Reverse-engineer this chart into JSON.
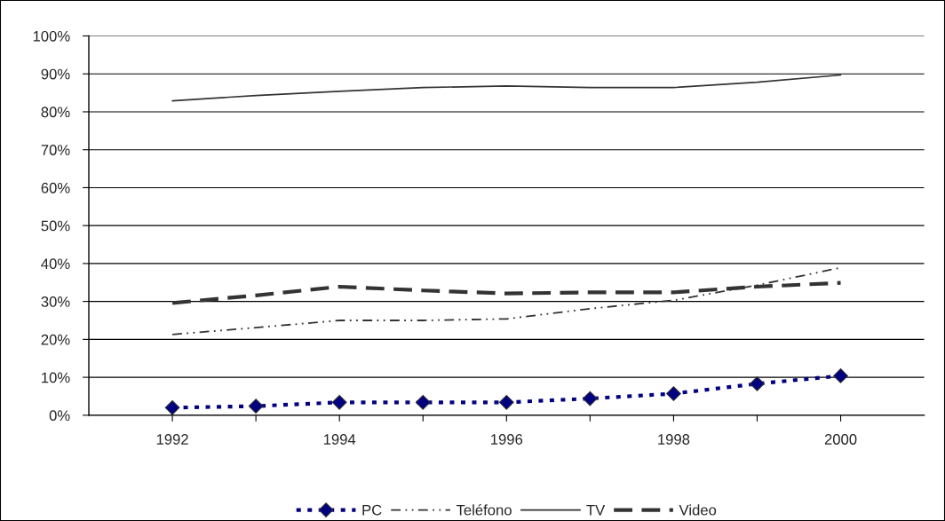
{
  "chart_data": {
    "type": "line",
    "x": [
      1992,
      1993,
      1994,
      1995,
      1996,
      1997,
      1998,
      1999,
      2000
    ],
    "xlim": [
      1991,
      2001
    ],
    "xticks": [
      1992,
      {
        "value": 1993,
        "label": null
      },
      1994,
      {
        "value": 1995,
        "label": null
      },
      1996,
      {
        "value": 1997,
        "label": null
      },
      1998,
      {
        "value": 1999,
        "label": null
      },
      2000
    ],
    "ylim": [
      0,
      100
    ],
    "yticks": [
      {
        "value": 0,
        "label": "0%"
      },
      {
        "value": 10,
        "label": "10%"
      },
      {
        "value": 20,
        "label": "20%"
      },
      {
        "value": 30,
        "label": "30%"
      },
      {
        "value": 40,
        "label": "40%"
      },
      {
        "value": 50,
        "label": "50%"
      },
      {
        "value": 60,
        "label": "60%"
      },
      {
        "value": 70,
        "label": "70%"
      },
      {
        "value": 80,
        "label": "80%"
      },
      {
        "value": 90,
        "label": "90%"
      },
      {
        "value": 100,
        "label": "100%"
      }
    ],
    "grid": "y",
    "legend": "bottom",
    "series": [
      {
        "name": "PC",
        "color": "#000080",
        "line_style": "dotted",
        "marker": "diamond",
        "values": [
          2.0,
          2.4,
          3.4,
          3.4,
          3.4,
          4.4,
          5.7,
          8.3,
          10.4
        ]
      },
      {
        "name": "Teléfono",
        "color": "#333333",
        "line_style": "dashdotdot",
        "values": [
          21.3,
          23.1,
          25.0,
          25.0,
          25.4,
          28.1,
          30.3,
          34.3,
          38.9
        ]
      },
      {
        "name": "TV",
        "color": "#333333",
        "line_style": "solid",
        "values": [
          82.9,
          84.3,
          85.4,
          86.4,
          86.8,
          86.4,
          86.4,
          87.8,
          89.7
        ]
      },
      {
        "name": "Video",
        "color": "#333333",
        "line_style": "dashed",
        "values": [
          29.6,
          31.6,
          33.9,
          32.9,
          32.1,
          32.4,
          32.4,
          33.9,
          34.9
        ]
      }
    ]
  }
}
